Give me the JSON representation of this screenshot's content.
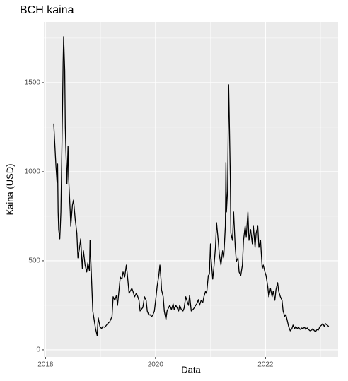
{
  "chart_data": {
    "type": "line",
    "title": "BCH kaina",
    "x_label": "Data",
    "y_label": "Kaina (USD)",
    "x": [
      2018.15,
      2018.18,
      2018.19,
      2018.21,
      2018.22,
      2018.23,
      2018.24,
      2018.26,
      2018.27,
      2018.28,
      2018.3,
      2018.31,
      2018.32,
      2018.33,
      2018.35,
      2018.36,
      2018.37,
      2018.39,
      2018.41,
      2018.42,
      2018.45,
      2018.46,
      2018.49,
      2018.51,
      2018.54,
      2018.57,
      2018.59,
      2018.62,
      2018.64,
      2018.67,
      2018.69,
      2018.72,
      2018.75,
      2018.77,
      2018.8,
      2018.81,
      2018.82,
      2018.84,
      2018.85,
      2018.86,
      2018.89,
      2018.91,
      2018.94,
      2018.95,
      2018.96,
      2018.99,
      2019.02,
      2019.04,
      2019.07,
      2019.09,
      2019.13,
      2019.17,
      2019.21,
      2019.23,
      2019.26,
      2019.29,
      2019.31,
      2019.34,
      2019.36,
      2019.39,
      2019.41,
      2019.44,
      2019.47,
      2019.49,
      2019.52,
      2019.54,
      2019.57,
      2019.59,
      2019.62,
      2019.65,
      2019.67,
      2019.7,
      2019.72,
      2019.75,
      2019.77,
      2019.8,
      2019.83,
      2019.85,
      2019.88,
      2019.9,
      2019.93,
      2019.95,
      2019.98,
      2020.01,
      2020.03,
      2020.06,
      2020.08,
      2020.1,
      2020.11,
      2020.14,
      2020.16,
      2020.19,
      2020.21,
      2020.24,
      2020.26,
      2020.29,
      2020.32,
      2020.34,
      2020.37,
      2020.39,
      2020.42,
      2020.44,
      2020.47,
      2020.5,
      2020.52,
      2020.55,
      2020.57,
      2020.6,
      2020.62,
      2020.65,
      2020.68,
      2020.7,
      2020.73,
      2020.75,
      2020.78,
      2020.8,
      2020.83,
      2020.86,
      2020.88,
      2020.91,
      2020.93,
      2020.96,
      2020.98,
      2021.0,
      2021.01,
      2021.04,
      2021.06,
      2021.09,
      2021.11,
      2021.14,
      2021.16,
      2021.19,
      2021.22,
      2021.24,
      2021.27,
      2021.28,
      2021.29,
      2021.31,
      2021.32,
      2021.33,
      2021.34,
      2021.36,
      2021.37,
      2021.4,
      2021.42,
      2021.45,
      2021.47,
      2021.5,
      2021.52,
      2021.55,
      2021.58,
      2021.6,
      2021.63,
      2021.65,
      2021.68,
      2021.7,
      2021.73,
      2021.76,
      2021.78,
      2021.81,
      2021.83,
      2021.86,
      2021.88,
      2021.91,
      2021.94,
      2021.96,
      2021.99,
      2022.01,
      2022.04,
      2022.06,
      2022.09,
      2022.12,
      2022.14,
      2022.17,
      2022.19,
      2022.22,
      2022.24,
      2022.27,
      2022.3,
      2022.32,
      2022.35,
      2022.37,
      2022.4,
      2022.42,
      2022.45,
      2022.48,
      2022.5,
      2022.53,
      2022.55,
      2022.58,
      2022.6,
      2022.63,
      2022.66,
      2022.68,
      2022.71,
      2022.73,
      2022.76,
      2022.78,
      2022.81,
      2022.84,
      2022.86,
      2022.89,
      2022.91,
      2022.94,
      2022.96,
      2022.99,
      2023.02,
      2023.04,
      2023.07,
      2023.09,
      2023.12,
      2023.15
    ],
    "series": [
      {
        "name": "BCH",
        "color": "#000000",
        "values": [
          1270,
          1091,
          1032,
          940,
          1044,
          774,
          675,
          623,
          694,
          774,
          1171,
          1369,
          1607,
          1758,
          1567,
          1250,
          1131,
          933,
          1143,
          972,
          774,
          694,
          813,
          841,
          734,
          655,
          516,
          575,
          623,
          456,
          556,
          476,
          437,
          488,
          444,
          615,
          536,
          377,
          298,
          218,
          159,
          119,
          79,
          139,
          179,
          131,
          119,
          131,
          127,
          131,
          147,
          159,
          187,
          298,
          278,
          306,
          250,
          345,
          409,
          397,
          437,
          409,
          476,
          417,
          317,
          329,
          345,
          329,
          298,
          317,
          306,
          278,
          218,
          230,
          238,
          298,
          278,
          218,
          194,
          198,
          187,
          194,
          218,
          298,
          357,
          417,
          476,
          397,
          337,
          298,
          218,
          171,
          218,
          238,
          250,
          226,
          258,
          226,
          250,
          238,
          218,
          250,
          226,
          218,
          234,
          298,
          278,
          250,
          306,
          218,
          226,
          234,
          250,
          258,
          282,
          250,
          278,
          266,
          298,
          329,
          317,
          417,
          425,
          595,
          516,
          397,
          456,
          575,
          714,
          615,
          536,
          476,
          556,
          516,
          694,
          1052,
          774,
          893,
          1171,
          1488,
          1329,
          972,
          655,
          615,
          774,
          575,
          496,
          516,
          437,
          417,
          476,
          615,
          694,
          635,
          774,
          615,
          675,
          595,
          694,
          575,
          655,
          694,
          575,
          615,
          456,
          476,
          437,
          417,
          357,
          298,
          345,
          298,
          329,
          278,
          337,
          377,
          329,
          298,
          278,
          218,
          187,
          198,
          159,
          131,
          107,
          119,
          139,
          119,
          131,
          119,
          127,
          115,
          123,
          119,
          127,
          115,
          123,
          115,
          107,
          111,
          119,
          107,
          103,
          115,
          111,
          131,
          139,
          147,
          131,
          147,
          139,
          131
        ]
      }
    ],
    "xlim": [
      2017.97,
      2023.32
    ],
    "xticks": [
      2018,
      2020,
      2022
    ],
    "minor_xticks": [
      2019,
      2021,
      2023
    ],
    "ylim": [
      -40,
      1841
    ],
    "yticks": [
      0,
      500,
      1000,
      1500
    ],
    "minor_yticks": [
      250,
      750,
      1250,
      1750
    ],
    "grid": true
  }
}
